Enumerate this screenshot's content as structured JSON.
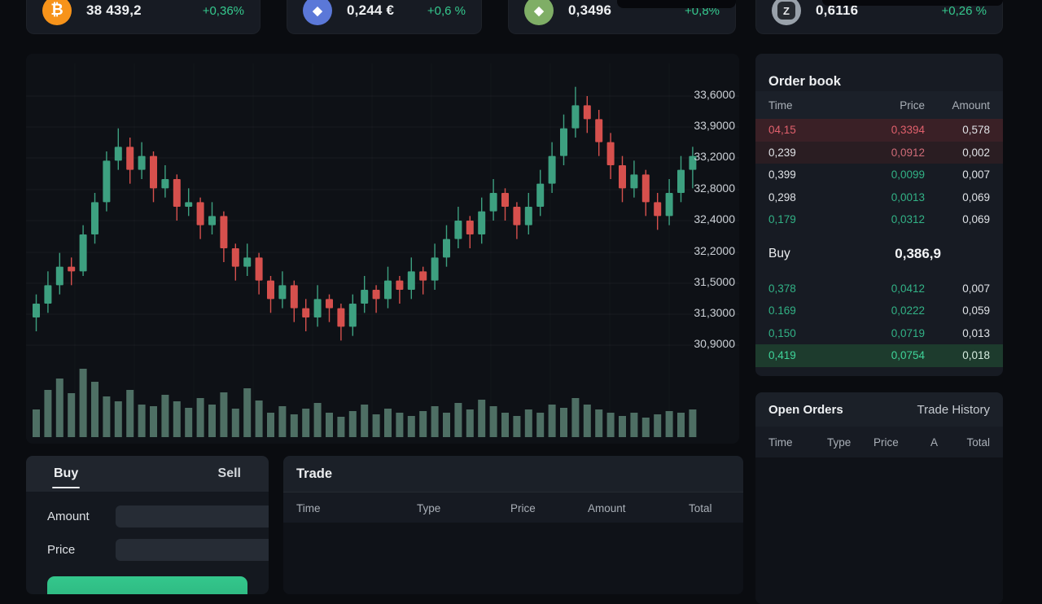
{
  "tickers": [
    {
      "name": "bitcoin",
      "icon_bg": "#f7931a",
      "icon_glyph": "₿",
      "price": "38 439,2",
      "change": "+0,36%"
    },
    {
      "name": "ethereum",
      "icon_bg": "#5b78d8",
      "icon_glyph": "◆",
      "price": "0,244 €",
      "change": "+0,6 %"
    },
    {
      "name": "token-green",
      "icon_bg": "#7fae66",
      "icon_glyph": "◆",
      "price": "0,3496",
      "change": "+0,8%"
    },
    {
      "name": "token-z",
      "icon_bg": "#99a1aa",
      "icon_glyph": "Z",
      "price": "0,6116",
      "change": "+0,26 %"
    }
  ],
  "chart_data": {
    "type": "candlestick",
    "title": "",
    "y_ticks": [
      "33,6000",
      "33,9000",
      "33,2000",
      "32,8000",
      "32,4000",
      "32,2000",
      "31,5000",
      "31,3000",
      "30,9000"
    ],
    "ylim": [
      30.7,
      33.95
    ],
    "grid": true,
    "colors": {
      "up": "#3da080",
      "down": "#d6504d",
      "volume": "#4e6f64"
    },
    "candles": [
      [
        31.2,
        31.45,
        31.05,
        31.35
      ],
      [
        31.35,
        31.7,
        31.25,
        31.55
      ],
      [
        31.55,
        31.9,
        31.45,
        31.75
      ],
      [
        31.75,
        31.85,
        31.55,
        31.7
      ],
      [
        31.7,
        32.2,
        31.65,
        32.1
      ],
      [
        32.1,
        32.55,
        32.0,
        32.45
      ],
      [
        32.45,
        33.0,
        32.35,
        32.9
      ],
      [
        32.9,
        33.25,
        32.8,
        33.05
      ],
      [
        33.05,
        33.15,
        32.65,
        32.8
      ],
      [
        32.8,
        33.1,
        32.7,
        32.95
      ],
      [
        32.95,
        33.0,
        32.45,
        32.6
      ],
      [
        32.6,
        32.85,
        32.5,
        32.7
      ],
      [
        32.7,
        32.75,
        32.25,
        32.4
      ],
      [
        32.4,
        32.6,
        32.3,
        32.45
      ],
      [
        32.45,
        32.5,
        32.05,
        32.2
      ],
      [
        32.2,
        32.45,
        32.1,
        32.3
      ],
      [
        32.3,
        32.35,
        31.8,
        31.95
      ],
      [
        31.95,
        32.0,
        31.6,
        31.75
      ],
      [
        31.75,
        32.0,
        31.65,
        31.85
      ],
      [
        31.85,
        31.9,
        31.45,
        31.6
      ],
      [
        31.6,
        31.65,
        31.25,
        31.4
      ],
      [
        31.4,
        31.7,
        31.3,
        31.55
      ],
      [
        31.55,
        31.6,
        31.15,
        31.3
      ],
      [
        31.3,
        31.4,
        31.05,
        31.2
      ],
      [
        31.2,
        31.55,
        31.1,
        31.4
      ],
      [
        31.4,
        31.45,
        31.15,
        31.3
      ],
      [
        31.3,
        31.35,
        30.95,
        31.1
      ],
      [
        31.1,
        31.45,
        31.0,
        31.35
      ],
      [
        31.35,
        31.65,
        31.25,
        31.5
      ],
      [
        31.5,
        31.55,
        31.25,
        31.4
      ],
      [
        31.4,
        31.75,
        31.3,
        31.6
      ],
      [
        31.6,
        31.65,
        31.35,
        31.5
      ],
      [
        31.5,
        31.85,
        31.4,
        31.7
      ],
      [
        31.7,
        31.75,
        31.45,
        31.6
      ],
      [
        31.6,
        32.0,
        31.5,
        31.85
      ],
      [
        31.85,
        32.2,
        31.75,
        32.05
      ],
      [
        32.05,
        32.4,
        31.95,
        32.25
      ],
      [
        32.25,
        32.3,
        31.95,
        32.1
      ],
      [
        32.1,
        32.5,
        32.0,
        32.35
      ],
      [
        32.35,
        32.7,
        32.25,
        32.55
      ],
      [
        32.55,
        32.6,
        32.25,
        32.4
      ],
      [
        32.4,
        32.45,
        32.05,
        32.2
      ],
      [
        32.2,
        32.55,
        32.1,
        32.4
      ],
      [
        32.4,
        32.8,
        32.3,
        32.65
      ],
      [
        32.65,
        33.1,
        32.55,
        32.95
      ],
      [
        32.95,
        33.4,
        32.85,
        33.25
      ],
      [
        33.25,
        33.7,
        33.15,
        33.5
      ],
      [
        33.5,
        33.6,
        33.2,
        33.35
      ],
      [
        33.35,
        33.45,
        32.95,
        33.1
      ],
      [
        33.1,
        33.2,
        32.7,
        32.85
      ],
      [
        32.85,
        32.95,
        32.45,
        32.6
      ],
      [
        32.6,
        32.9,
        32.5,
        32.75
      ],
      [
        32.75,
        32.8,
        32.3,
        32.45
      ],
      [
        32.45,
        32.55,
        32.15,
        32.3
      ],
      [
        32.3,
        32.7,
        32.2,
        32.55
      ],
      [
        32.55,
        32.95,
        32.45,
        32.8
      ],
      [
        32.8,
        33.05,
        32.6,
        32.95
      ]
    ],
    "volume": [
      34,
      58,
      72,
      54,
      84,
      68,
      50,
      44,
      58,
      40,
      38,
      52,
      44,
      36,
      48,
      40,
      55,
      35,
      60,
      45,
      30,
      38,
      28,
      35,
      42,
      30,
      25,
      32,
      40,
      28,
      35,
      30,
      26,
      32,
      38,
      30,
      42,
      34,
      46,
      38,
      30,
      26,
      34,
      30,
      40,
      36,
      48,
      40,
      34,
      30,
      26,
      30,
      24,
      28,
      32,
      30,
      34
    ]
  },
  "order_book": {
    "title": "Order book",
    "columns": [
      "Time",
      "Price",
      "Amount"
    ],
    "asks": [
      {
        "time": "04,15",
        "price": "0,3394",
        "amount": "0,578",
        "variant": "ask-strong"
      },
      {
        "time": "0,239",
        "price": "0,0912",
        "amount": "0,002",
        "variant": "ask-soft"
      },
      {
        "time": "0,399",
        "price": "0,0099",
        "amount": "0,007",
        "variant": "ask"
      },
      {
        "time": "0,298",
        "price": "0,0013",
        "amount": "0,069",
        "variant": "ask"
      },
      {
        "time": "0,179",
        "price": "0,0312",
        "amount": "0,069",
        "variant": "ask-g"
      }
    ],
    "mid": {
      "label": "Buy",
      "price": "0,386,9"
    },
    "bids": [
      {
        "time": "0,378",
        "price": "0,0412",
        "amount": "0,007",
        "variant": "bid"
      },
      {
        "time": "0.169",
        "price": "0,0222",
        "amount": "0,059",
        "variant": "bid"
      },
      {
        "time": "0,150",
        "price": "0,0719",
        "amount": "0,013",
        "variant": "bid"
      },
      {
        "time": "0,419",
        "price": "0,0754",
        "amount": "0,018",
        "variant": "bid-strong"
      }
    ]
  },
  "open_orders": {
    "tabs": [
      "Open Orders",
      "Trade History"
    ],
    "columns": [
      "Time",
      "Type",
      "Price",
      "A",
      "Total"
    ],
    "rows": []
  },
  "trade_panel": {
    "title": "Trade",
    "columns": [
      "Time",
      "Type",
      "Price",
      "Amount",
      "Total"
    ],
    "rows": []
  },
  "order_form": {
    "tabs": [
      "Buy",
      "Sell"
    ],
    "fields": [
      {
        "label": "Amount",
        "value": ""
      },
      {
        "label": "Price",
        "value": ""
      }
    ],
    "accent_color": "#2ebd85"
  }
}
